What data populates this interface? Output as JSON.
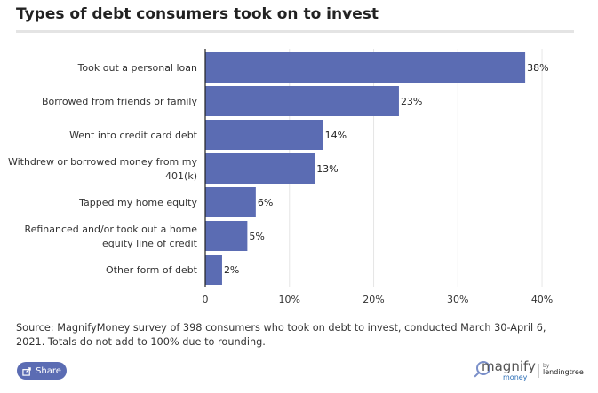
{
  "title": "Types of debt consumers took on to invest",
  "chart_data": {
    "type": "bar",
    "orientation": "horizontal",
    "categories": [
      [
        "Took out a personal loan"
      ],
      [
        "Borrowed from friends or family"
      ],
      [
        "Went into credit card debt"
      ],
      [
        "Withdrew or borrowed money from my",
        "401(k)"
      ],
      [
        "Tapped my home equity"
      ],
      [
        "Refinanced and/or took out a home",
        "equity line of credit"
      ],
      [
        "Other form of debt"
      ]
    ],
    "values": [
      38,
      23,
      14,
      13,
      6,
      5,
      2
    ],
    "value_labels": [
      "38%",
      "23%",
      "14%",
      "13%",
      "6%",
      "5%",
      "2%"
    ],
    "xlim": [
      0,
      42
    ],
    "x_ticks": [
      0,
      10,
      20,
      30,
      40
    ],
    "x_tick_labels": [
      "0",
      "10%",
      "20%",
      "30%",
      "40%"
    ],
    "grid": "vertical",
    "bar_color": "#5b6cb3"
  },
  "source_text": "Source: MagnifyMoney survey of 398 consumers who took on debt to invest, conducted March 30-April 6, 2021. Totals do not add to 100% due to rounding.",
  "share_label": "Share",
  "logo": {
    "name": "magnify",
    "sub": "money",
    "by": "by",
    "partner": "lendingtree"
  },
  "icons": {
    "share": "share-icon"
  }
}
